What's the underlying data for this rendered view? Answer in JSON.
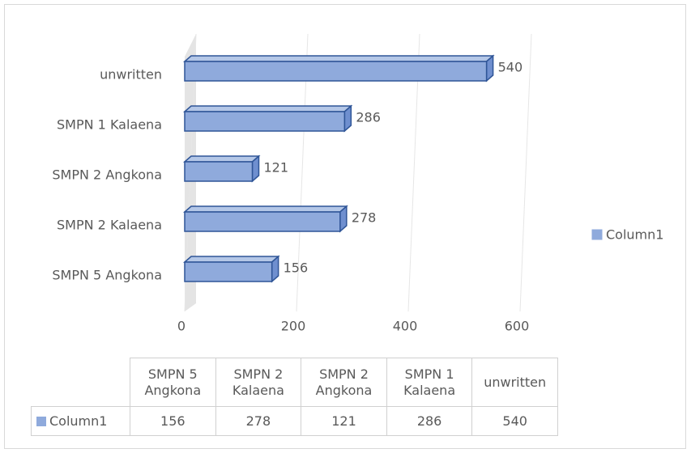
{
  "chart_data": {
    "type": "bar",
    "orientation": "horizontal",
    "categories": [
      "SMPN 5 Angkona",
      "SMPN 2 Kalaena",
      "SMPN 2 Angkona",
      "SMPN 1 Kalaena",
      "unwritten"
    ],
    "series": [
      {
        "name": "Column1",
        "color": "#8faadc",
        "values": [
          156,
          278,
          121,
          286,
          540
        ]
      }
    ],
    "xlim": [
      0,
      600
    ],
    "xticks": [
      0,
      200,
      400,
      600
    ],
    "grid": true,
    "legend": "right",
    "data_table": true
  }
}
